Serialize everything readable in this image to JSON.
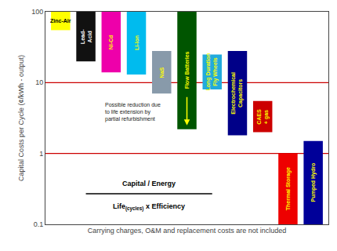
{
  "chart_data": {
    "type": "bar",
    "categories": [
      "Zinc-Air",
      "Lead-\nAcid",
      "Ni-Cd",
      "Li-ion",
      "NaS",
      "Flow Batteries",
      "Long Duration\nFly Wheels",
      "Electrochemical\nCapacitors",
      "CAES\n+ gas",
      "Thermal Storage",
      "Pumped Hydro"
    ],
    "values": [
      [
        55,
        100
      ],
      [
        20,
        100
      ],
      [
        14,
        100
      ],
      [
        13,
        100
      ],
      [
        7,
        28
      ],
      [
        2.2,
        100
      ],
      [
        8,
        25
      ],
      [
        1.8,
        28
      ],
      [
        2.0,
        5.5
      ],
      [
        0.1,
        1.0
      ],
      [
        0.1,
        1.5
      ]
    ],
    "colors": [
      "#ffff00",
      "#111111",
      "#ee00aa",
      "#00bbee",
      "#889aaa",
      "#005500",
      "#22aadd",
      "#000088",
      "#cc0000",
      "#ee0000",
      "#000099"
    ],
    "label_colors": [
      "#000000",
      "#ffffff",
      "#ffff00",
      "#ffff00",
      "#ffff00",
      "#ffff00",
      "#ffff00",
      "#ffff00",
      "#ffff00",
      "#ffff00",
      "#ffff00"
    ],
    "ylabel": "Capital Costs per Cycle (¢/kWh - output)",
    "xlabel": "Carrying charges, O&M and replacement costs are not included",
    "log": "y",
    "ylim": [
      0.1,
      100
    ],
    "yticks": [
      0.1,
      1,
      10,
      100
    ],
    "tick_labels": "y",
    "grid": false,
    "reference_lines": {
      "values": [
        1.0,
        10.0
      ],
      "color": "#cc0000"
    },
    "annotations": [
      {
        "text": "Possible reduction due\nto life extension by\npartial refurbishment",
        "category": "Flow Batteries",
        "arrow_from": 6.5,
        "arrow_to": 2.5
      }
    ],
    "formula": {
      "numerator": "Capital / Energy",
      "denominator": "Life",
      "denominator_subscript": "(cycles)",
      "denominator_rest": " x Efficiency"
    }
  }
}
